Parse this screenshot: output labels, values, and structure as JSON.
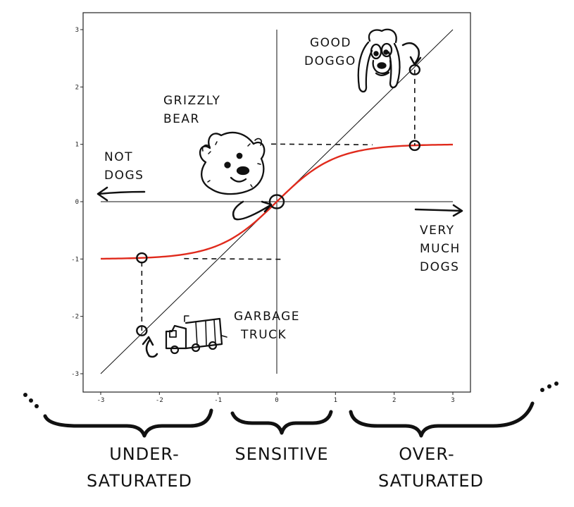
{
  "chart_data": {
    "type": "line",
    "xlim": [
      -3,
      3
    ],
    "ylim": [
      -3,
      3
    ],
    "xticks": [
      -3,
      -2,
      -1,
      0,
      1,
      2,
      3
    ],
    "yticks": [
      -3,
      -2,
      -1,
      0,
      1,
      2,
      3
    ],
    "tick_labels_x": [
      "-3",
      "-2",
      "-1",
      "0",
      "1",
      "2",
      "3"
    ],
    "tick_labels_y": [
      "-3",
      "-2",
      "-1",
      "0",
      "1",
      "2",
      "3"
    ],
    "grid": false,
    "series": [
      {
        "kind": "identity",
        "color": "#111111",
        "x": [
          -3,
          -2,
          -1,
          0,
          1,
          2,
          3
        ],
        "y": [
          -3,
          -2,
          -1,
          0,
          1,
          2,
          3
        ]
      },
      {
        "kind": "tanh",
        "color": "#e02a1c",
        "x": [
          -3,
          -2.5,
          -2,
          -1.5,
          -1,
          -0.5,
          0,
          0.5,
          1,
          1.5,
          2,
          2.5,
          3
        ],
        "y": [
          -0.995,
          -0.987,
          -0.964,
          -0.905,
          -0.762,
          -0.462,
          0,
          0.462,
          0.762,
          0.905,
          0.964,
          0.987,
          0.995
        ]
      }
    ],
    "marked_points": [
      {
        "name": "garbage-truck",
        "x": -2.3,
        "y": -2.25,
        "on": "identity"
      },
      {
        "name": "garbage-truck-out",
        "x": -2.3,
        "y": -0.98,
        "on": "tanh"
      },
      {
        "name": "grizzly-bear",
        "x": 0,
        "y": 0,
        "on": "both"
      },
      {
        "name": "good-doggo",
        "x": 2.35,
        "y": 2.3,
        "on": "identity"
      },
      {
        "name": "good-doggo-out",
        "x": 2.35,
        "y": 0.98,
        "on": "tanh"
      }
    ],
    "annotations": {
      "not_dogs": [
        "NOT",
        "DOGS"
      ],
      "very_much_dogs": [
        "VERY",
        "MUCH",
        "DOGS"
      ],
      "grizzly_bear": [
        "GRIZZLY",
        "BEAR"
      ],
      "good_doggo": [
        "GOOD",
        "DOGGO"
      ],
      "garbage_truck": [
        "GARBAGE",
        "TRUCK"
      ]
    },
    "regions": [
      {
        "label_lines": [
          "UNDER-",
          "SATURATED"
        ],
        "x_range": [
          -3,
          -1.1
        ]
      },
      {
        "label_lines": [
          "SENSITIVE"
        ],
        "x_range": [
          -0.8,
          0.9
        ]
      },
      {
        "label_lines": [
          "OVER-",
          "SATURATED"
        ],
        "x_range": [
          1.2,
          3
        ]
      }
    ]
  },
  "icons": [
    "grizzly-bear-icon",
    "good-doggo-icon",
    "garbage-truck-icon"
  ]
}
